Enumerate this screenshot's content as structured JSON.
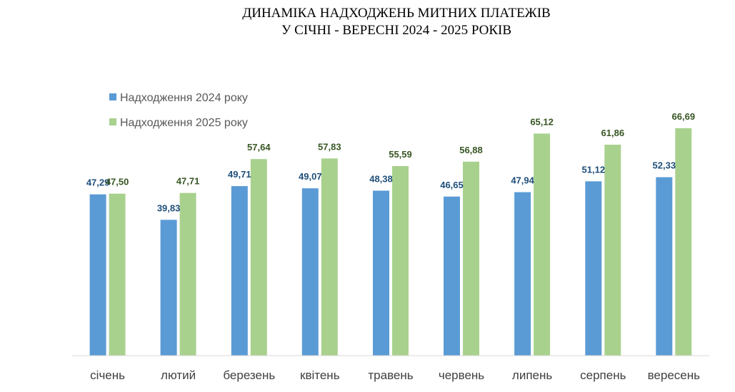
{
  "chart_data": {
    "type": "bar",
    "title": [
      "ДИНАМІКА НАДХОДЖЕНЬ МИТНИХ ПЛАТЕЖІВ",
      "У СІЧНІ - ВЕРЕСНІ 2024 - 2025 РОКІВ"
    ],
    "categories": [
      "січень",
      "лютий",
      "березень",
      "квітень",
      "травень",
      "червень",
      "липень",
      "серпень",
      "вересень"
    ],
    "series": [
      {
        "name": "Надходження 2024 року",
        "color": "#5b9bd5",
        "label_color": "#1f4e79",
        "values": [
          47.29,
          39.83,
          49.71,
          49.07,
          48.38,
          46.65,
          47.94,
          51.12,
          52.33
        ],
        "labels": [
          "47,29",
          "39,83",
          "49,71",
          "49,07",
          "48,38",
          "46,65",
          "47,94",
          "51,12",
          "52,33"
        ]
      },
      {
        "name": "Надходження 2025 року",
        "color": "#a9d18e",
        "label_color": "#375623",
        "values": [
          47.5,
          47.71,
          57.64,
          57.83,
          55.59,
          56.88,
          65.12,
          61.86,
          66.69
        ],
        "labels": [
          "47,50",
          "47,71",
          "57,64",
          "57,83",
          "55,59",
          "56,88",
          "65,12",
          "61,86",
          "66,69"
        ]
      }
    ],
    "xlabel": "",
    "ylabel": "",
    "ylim": [
      0,
      75
    ],
    "grid": false,
    "legend_position": "top-left"
  }
}
